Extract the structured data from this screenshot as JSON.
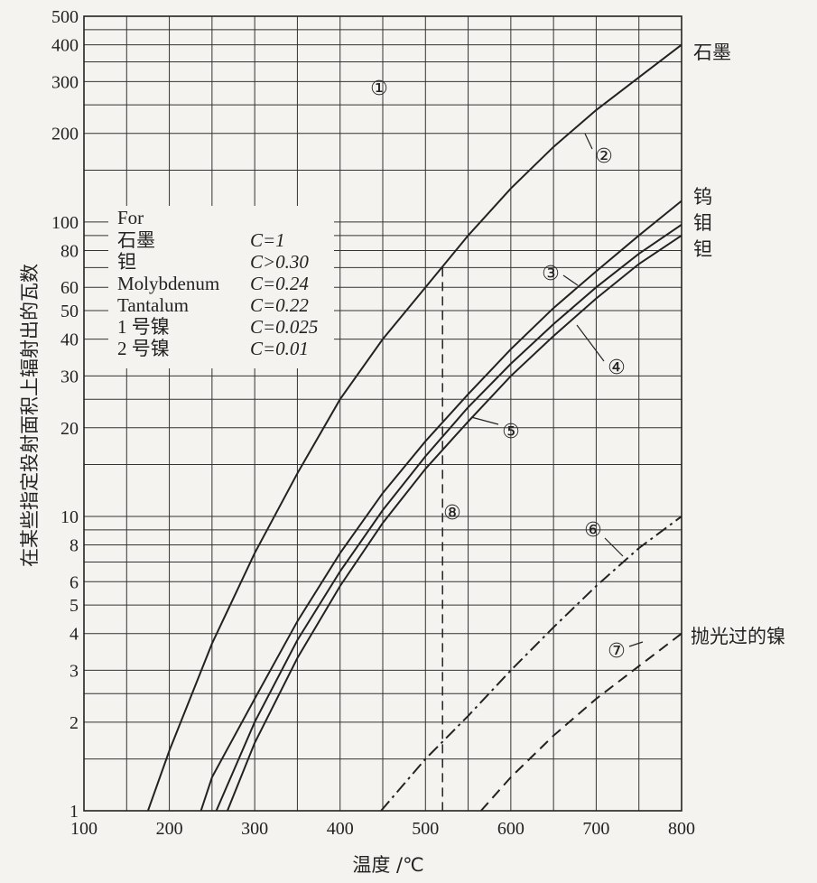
{
  "chart_data": {
    "type": "line",
    "xlabel": "温度 /℃",
    "ylabel": "在某些指定投射面积上辐射出的瓦数",
    "xlim": [
      100,
      800
    ],
    "ylim": [
      1,
      500
    ],
    "y_scale": "log",
    "grid": true,
    "x_ticks": [
      "100",
      "200",
      "300",
      "400",
      "500",
      "600",
      "700",
      "800"
    ],
    "y_ticks": [
      {
        "v": 1,
        "t": "1"
      },
      {
        "v": 2,
        "t": "2"
      },
      {
        "v": 3,
        "t": "3"
      },
      {
        "v": 4,
        "t": "4"
      },
      {
        "v": 5,
        "t": "5"
      },
      {
        "v": 6,
        "t": "6"
      },
      {
        "v": 8,
        "t": "8"
      },
      {
        "v": 10,
        "t": "10"
      },
      {
        "v": 20,
        "t": "20"
      },
      {
        "v": 30,
        "t": "30"
      },
      {
        "v": 40,
        "t": "40"
      },
      {
        "v": 50,
        "t": "50"
      },
      {
        "v": 60,
        "t": "60"
      },
      {
        "v": 80,
        "t": "80"
      },
      {
        "v": 100,
        "t": "100"
      },
      {
        "v": 200,
        "t": "200"
      },
      {
        "v": 300,
        "t": "300"
      },
      {
        "v": 400,
        "t": "400"
      },
      {
        "v": 500,
        "t": "500"
      }
    ],
    "legend": {
      "header": "For",
      "rows": [
        {
          "name": "石墨",
          "coef": "C=1"
        },
        {
          "name": "钽",
          "coef": "C>0.30"
        },
        {
          "name": "Molybdenum",
          "coef": "C=0.24"
        },
        {
          "name": "Tantalum",
          "coef": "C=0.22"
        },
        {
          "name": "1 号镍",
          "coef": "C=0.025"
        },
        {
          "name": "2 号镍",
          "coef": "C=0.01"
        }
      ]
    },
    "series": [
      {
        "marker": "②",
        "name": "石墨",
        "style": "solid",
        "points": [
          [
            175,
            1
          ],
          [
            200,
            1.6
          ],
          [
            250,
            3.7
          ],
          [
            300,
            7.5
          ],
          [
            350,
            14
          ],
          [
            400,
            25
          ],
          [
            450,
            40
          ],
          [
            500,
            60
          ],
          [
            550,
            90
          ],
          [
            600,
            130
          ],
          [
            650,
            180
          ],
          [
            700,
            240
          ],
          [
            750,
            310
          ],
          [
            800,
            400
          ]
        ]
      },
      {
        "marker": "③",
        "name": "钨",
        "style": "solid",
        "points": [
          [
            237,
            1
          ],
          [
            250,
            1.3
          ],
          [
            300,
            2.4
          ],
          [
            350,
            4.4
          ],
          [
            400,
            7.5
          ],
          [
            450,
            12
          ],
          [
            500,
            18
          ],
          [
            550,
            26
          ],
          [
            600,
            37
          ],
          [
            650,
            51
          ],
          [
            700,
            68
          ],
          [
            750,
            90
          ],
          [
            800,
            118
          ]
        ]
      },
      {
        "marker": "④",
        "name": "钼",
        "style": "solid",
        "points": [
          [
            255,
            1
          ],
          [
            300,
            2
          ],
          [
            350,
            3.8
          ],
          [
            400,
            6.5
          ],
          [
            450,
            10.5
          ],
          [
            500,
            16
          ],
          [
            550,
            23.5
          ],
          [
            600,
            33
          ],
          [
            650,
            45
          ],
          [
            700,
            60
          ],
          [
            750,
            78
          ],
          [
            800,
            98
          ]
        ]
      },
      {
        "marker": "⑤",
        "name": "钽",
        "style": "solid",
        "points": [
          [
            268,
            1
          ],
          [
            300,
            1.7
          ],
          [
            350,
            3.3
          ],
          [
            400,
            5.8
          ],
          [
            450,
            9.5
          ],
          [
            500,
            14.5
          ],
          [
            550,
            21
          ],
          [
            600,
            30
          ],
          [
            650,
            41
          ],
          [
            700,
            55
          ],
          [
            750,
            72
          ],
          [
            800,
            90
          ]
        ]
      },
      {
        "marker": "⑥",
        "name": "",
        "style": "dash-dot",
        "points": [
          [
            448,
            1
          ],
          [
            500,
            1.5
          ],
          [
            550,
            2.1
          ],
          [
            600,
            3
          ],
          [
            650,
            4.2
          ],
          [
            700,
            5.8
          ],
          [
            750,
            7.8
          ],
          [
            800,
            10
          ]
        ]
      },
      {
        "marker": "⑦",
        "name": "抛光过的镍",
        "style": "dashed",
        "points": [
          [
            565,
            1
          ],
          [
            600,
            1.3
          ],
          [
            650,
            1.8
          ],
          [
            700,
            2.4
          ],
          [
            750,
            3.1
          ],
          [
            800,
            4
          ]
        ]
      }
    ],
    "reference_line": {
      "marker": "⑧",
      "x": 520,
      "style": "dashed"
    },
    "curve_labels": [
      {
        "text": "石墨"
      },
      {
        "text": "钨"
      },
      {
        "text": "钼"
      },
      {
        "text": "钽"
      },
      {
        "text": "抛光过的镍"
      }
    ],
    "markers": [
      "①",
      "②",
      "③",
      "④",
      "⑤",
      "⑥",
      "⑦",
      "⑧"
    ]
  }
}
